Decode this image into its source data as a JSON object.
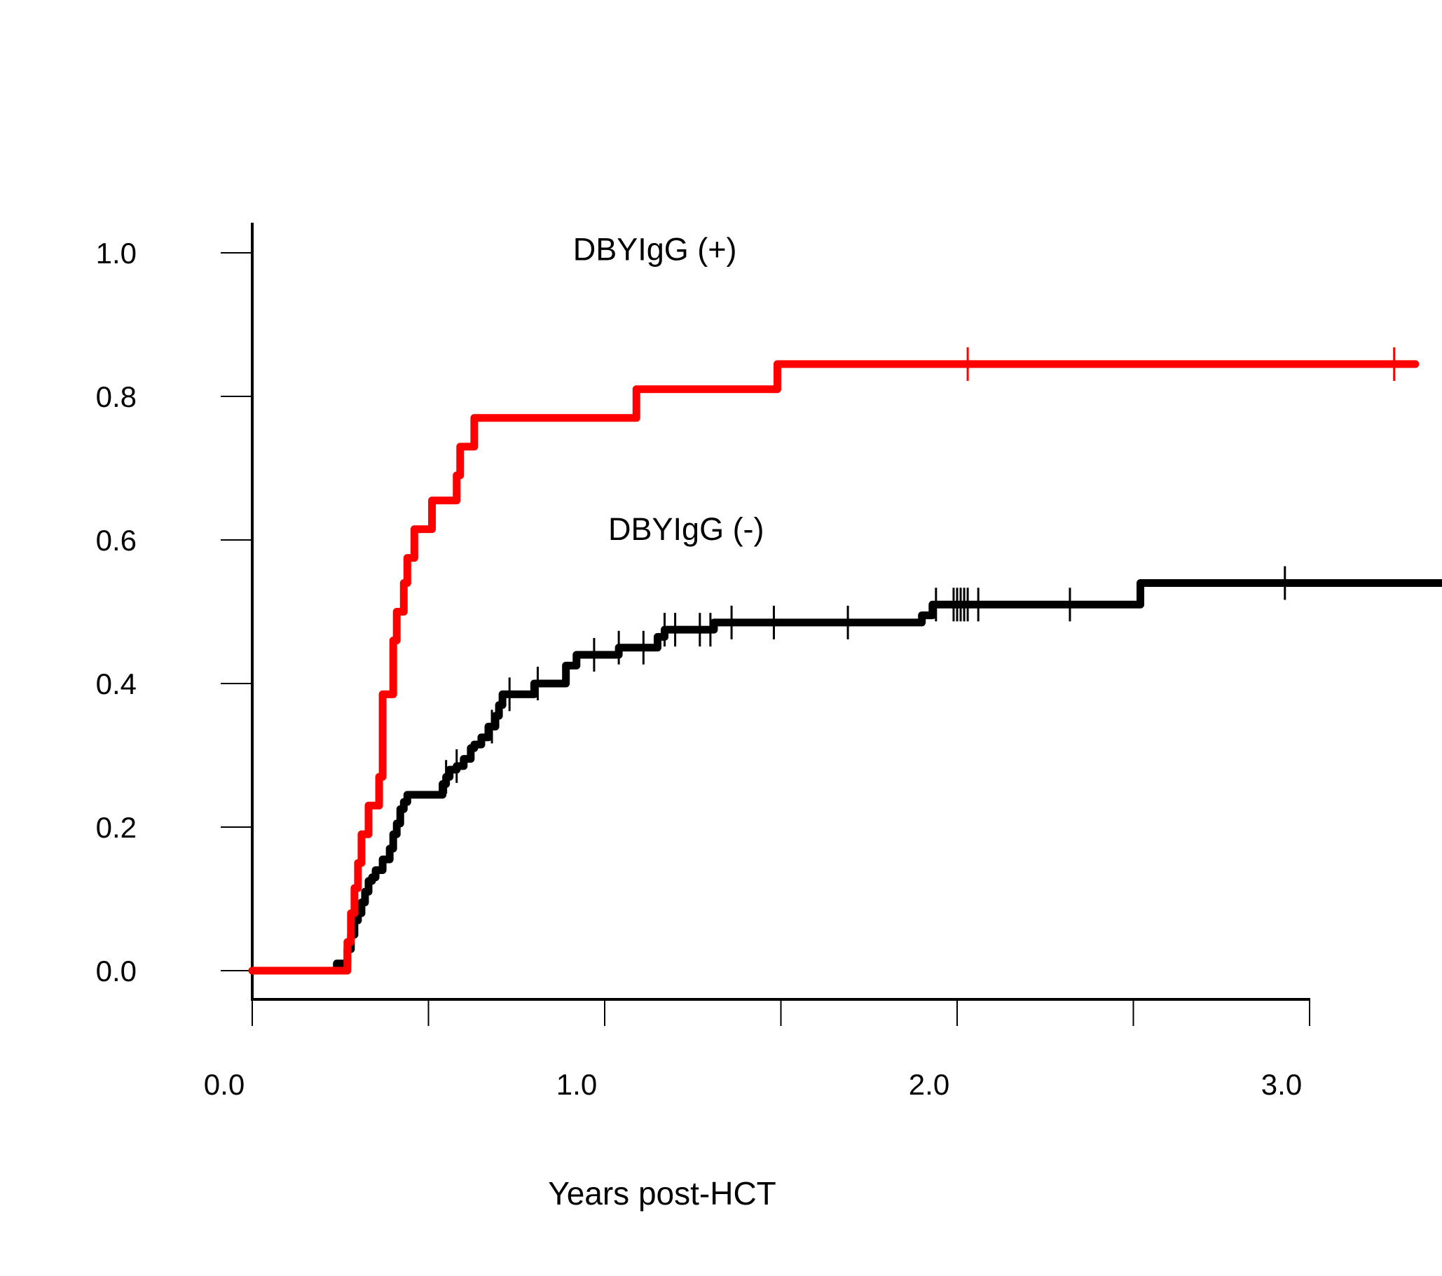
{
  "chart_data": {
    "type": "line",
    "step": true,
    "title": "",
    "xlabel": "Years post-HCT",
    "ylabel": "",
    "xlim": [
      0,
      3.0
    ],
    "ylim": [
      0,
      1.0
    ],
    "x_ticks": [
      0,
      0.5,
      1.0,
      1.5,
      2.0,
      2.5,
      3.0
    ],
    "x_tick_labels": [
      {
        "value": 0.0,
        "label": "0.0"
      },
      {
        "value": 1.0,
        "label": "1.0"
      },
      {
        "value": 2.0,
        "label": "2.0"
      },
      {
        "value": 3.0,
        "label": "3.0"
      }
    ],
    "y_ticks": [
      {
        "value": 0.0,
        "label": "0.0"
      },
      {
        "value": 0.2,
        "label": "0.2"
      },
      {
        "value": 0.4,
        "label": "0.4"
      },
      {
        "value": 0.6,
        "label": "0.6"
      },
      {
        "value": 0.8,
        "label": "0.8"
      },
      {
        "value": 1.0,
        "label": "1.0"
      }
    ],
    "grid": false,
    "legend": "none",
    "series": [
      {
        "name": "DBYIgG (+)",
        "color": "#ff0000",
        "label_position": {
          "x": 0.91,
          "y": 0.99
        },
        "x": [
          0,
          0.27,
          0.27,
          0.28,
          0.29,
          0.3,
          0.31,
          0.33,
          0.36,
          0.37,
          0.4,
          0.41,
          0.43,
          0.44,
          0.46,
          0.51,
          0.58,
          0.59,
          0.6,
          0.63,
          1.09,
          1.49,
          3.3
        ],
        "y": [
          0,
          0.015,
          0.04,
          0.08,
          0.115,
          0.15,
          0.19,
          0.23,
          0.27,
          0.385,
          0.46,
          0.5,
          0.54,
          0.575,
          0.615,
          0.655,
          0.69,
          0.73,
          0.73,
          0.77,
          0.81,
          0.845,
          0.845
        ],
        "censored": [
          2.03,
          3.24
        ]
      },
      {
        "name": "DBYIgG (-)",
        "color": "#000000",
        "label_position": {
          "x": 1.01,
          "y": 0.6
        },
        "x": [
          0,
          0.24,
          0.27,
          0.28,
          0.29,
          0.3,
          0.31,
          0.32,
          0.33,
          0.34,
          0.35,
          0.37,
          0.39,
          0.4,
          0.41,
          0.42,
          0.43,
          0.44,
          0.46,
          0.54,
          0.55,
          0.56,
          0.58,
          0.6,
          0.62,
          0.63,
          0.65,
          0.67,
          0.69,
          0.7,
          0.71,
          0.72,
          0.73,
          0.8,
          0.89,
          0.92,
          1.04,
          1.07,
          1.15,
          1.17,
          1.31,
          1.9,
          1.93,
          2.52,
          3.4
        ],
        "y": [
          0,
          0.01,
          0.03,
          0.05,
          0.07,
          0.08,
          0.095,
          0.11,
          0.125,
          0.13,
          0.14,
          0.155,
          0.17,
          0.19,
          0.205,
          0.225,
          0.235,
          0.245,
          0.245,
          0.26,
          0.27,
          0.28,
          0.285,
          0.295,
          0.31,
          0.315,
          0.325,
          0.34,
          0.355,
          0.37,
          0.385,
          0.385,
          0.385,
          0.4,
          0.425,
          0.44,
          0.45,
          0.45,
          0.465,
          0.475,
          0.485,
          0.495,
          0.51,
          0.54,
          0.54
        ],
        "censored": [
          0.55,
          0.58,
          0.68,
          0.73,
          0.81,
          0.97,
          1.04,
          1.11,
          1.17,
          1.2,
          1.27,
          1.3,
          1.36,
          1.48,
          1.69,
          1.94,
          1.99,
          2.0,
          2.01,
          2.02,
          2.03,
          2.06,
          2.32,
          2.93
        ]
      }
    ]
  }
}
